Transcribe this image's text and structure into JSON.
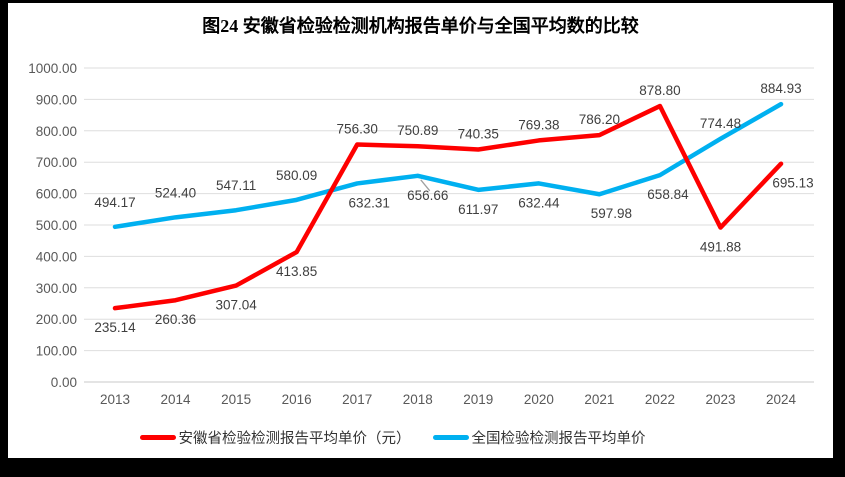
{
  "chart_data": {
    "type": "line",
    "title": "图24 安徽省检验检测机构报告单价与全国平均数的比较",
    "categories": [
      "2013",
      "2014",
      "2015",
      "2016",
      "2017",
      "2018",
      "2019",
      "2020",
      "2021",
      "2022",
      "2023",
      "2024"
    ],
    "series": [
      {
        "name": "安徽省检验检测报告平均单价（元）",
        "color": "#fe0000",
        "values": [
          235.14,
          260.36,
          307.04,
          413.85,
          756.3,
          750.89,
          740.35,
          769.38,
          786.2,
          878.8,
          491.88,
          695.13
        ],
        "label_sides": [
          "below",
          "below",
          "below",
          "below",
          "above",
          "above",
          "above",
          "above",
          "above",
          "above",
          "below",
          "below"
        ],
        "label_dx": {
          "11": 12
        }
      },
      {
        "name": "全国检验检测报告平均单价",
        "color": "#00b0f0",
        "values": [
          494.17,
          524.4,
          547.11,
          580.09,
          632.31,
          656.66,
          611.97,
          632.44,
          597.98,
          658.84,
          774.48,
          884.93
        ],
        "label_sides": [
          "above",
          "above",
          "above",
          "above",
          "below",
          "below",
          "below",
          "below",
          "below",
          "below",
          "above",
          "above"
        ],
        "label_dx": {
          "4": 12,
          "5": 10,
          "8": 12,
          "9": 8
        },
        "label_dy": {
          "0": -9,
          "1": -9,
          "2": -9,
          "3": -9
        },
        "leader_index": 5
      }
    ],
    "y_axis": {
      "min": 0,
      "max": 1000,
      "step": 100,
      "decimals": 2
    },
    "x_axis_labels_visible": true,
    "grid": true,
    "legend_position": "bottom",
    "colors": {
      "grid_line": "#dedede",
      "axis_line": "#c9c9c9",
      "tick_text": "#595959",
      "data_label_text": "#3f3f3f",
      "leader_line": "#a0a0a0",
      "background": "#ffffff",
      "frame": "#000000"
    }
  }
}
